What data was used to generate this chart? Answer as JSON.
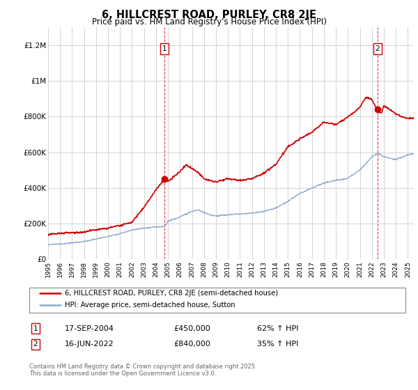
{
  "title": "6, HILLCREST ROAD, PURLEY, CR8 2JE",
  "subtitle": "Price paid vs. HM Land Registry's House Price Index (HPI)",
  "title_fontsize": 10.5,
  "subtitle_fontsize": 8.5,
  "ylim": [
    0,
    1300000
  ],
  "yticks": [
    0,
    200000,
    400000,
    600000,
    800000,
    1000000,
    1200000
  ],
  "ytick_labels": [
    "£0",
    "£200K",
    "£400K",
    "£600K",
    "£800K",
    "£1M",
    "£1.2M"
  ],
  "line1_color": "#cc0000",
  "line2_color": "#88aacc",
  "marker1_date": 2004.72,
  "marker1_value": 450000,
  "marker1_label": "1",
  "marker2_date": 2022.46,
  "marker2_value": 840000,
  "marker2_label": "2",
  "vline1_x": 2004.72,
  "vline2_x": 2022.46,
  "legend1_label": "6, HILLCREST ROAD, PURLEY, CR8 2JE (semi-detached house)",
  "legend2_label": "HPI: Average price, semi-detached house, Sutton",
  "annotation1_num": "1",
  "annotation1_date": "17-SEP-2004",
  "annotation1_price": "£450,000",
  "annotation1_hpi": "62% ↑ HPI",
  "annotation2_num": "2",
  "annotation2_date": "16-JUN-2022",
  "annotation2_price": "£840,000",
  "annotation2_hpi": "35% ↑ HPI",
  "footnote": "Contains HM Land Registry data © Crown copyright and database right 2025.\nThis data is licensed under the Open Government Licence v3.0.",
  "background_color": "#ffffff",
  "grid_color": "#cccccc",
  "xmin": 1995,
  "xmax": 2025.5,
  "hpi_points_x": [
    1995,
    1996,
    1997,
    1998,
    1999,
    2000,
    2001,
    2002,
    2003,
    2004,
    2004.72,
    2005,
    2006,
    2007,
    2007.5,
    2008,
    2008.5,
    2009,
    2010,
    2011,
    2012,
    2013,
    2014,
    2015,
    2016,
    2017,
    2018,
    2019,
    2020,
    2021,
    2021.5,
    2022,
    2022.5,
    2023,
    2024,
    2025,
    2025.5
  ],
  "hpi_points_y": [
    78000,
    82000,
    88000,
    96000,
    108000,
    122000,
    140000,
    160000,
    172000,
    178000,
    182000,
    210000,
    235000,
    265000,
    275000,
    260000,
    248000,
    242000,
    250000,
    255000,
    260000,
    272000,
    290000,
    330000,
    375000,
    405000,
    430000,
    445000,
    455000,
    505000,
    540000,
    580000,
    600000,
    580000,
    565000,
    590000,
    600000
  ],
  "prop_points_x": [
    1995,
    1996,
    1997,
    1998,
    1999,
    2000,
    2001,
    2002,
    2003,
    2004,
    2004.72,
    2005,
    2006,
    2006.5,
    2007,
    2007.5,
    2008,
    2009,
    2010,
    2011,
    2012,
    2013,
    2014,
    2015,
    2016,
    2017,
    2018,
    2019,
    2020,
    2021,
    2021.5,
    2022,
    2022.46,
    2022.8,
    2023,
    2023.5,
    2024,
    2024.5,
    2025,
    2025.5
  ],
  "prop_points_y": [
    128000,
    133000,
    138000,
    145000,
    155000,
    168000,
    185000,
    205000,
    290000,
    390000,
    450000,
    435000,
    490000,
    530000,
    510000,
    490000,
    455000,
    435000,
    455000,
    445000,
    460000,
    490000,
    540000,
    635000,
    680000,
    715000,
    775000,
    760000,
    800000,
    855000,
    910000,
    900000,
    840000,
    820000,
    865000,
    840000,
    815000,
    800000,
    790000,
    790000
  ]
}
